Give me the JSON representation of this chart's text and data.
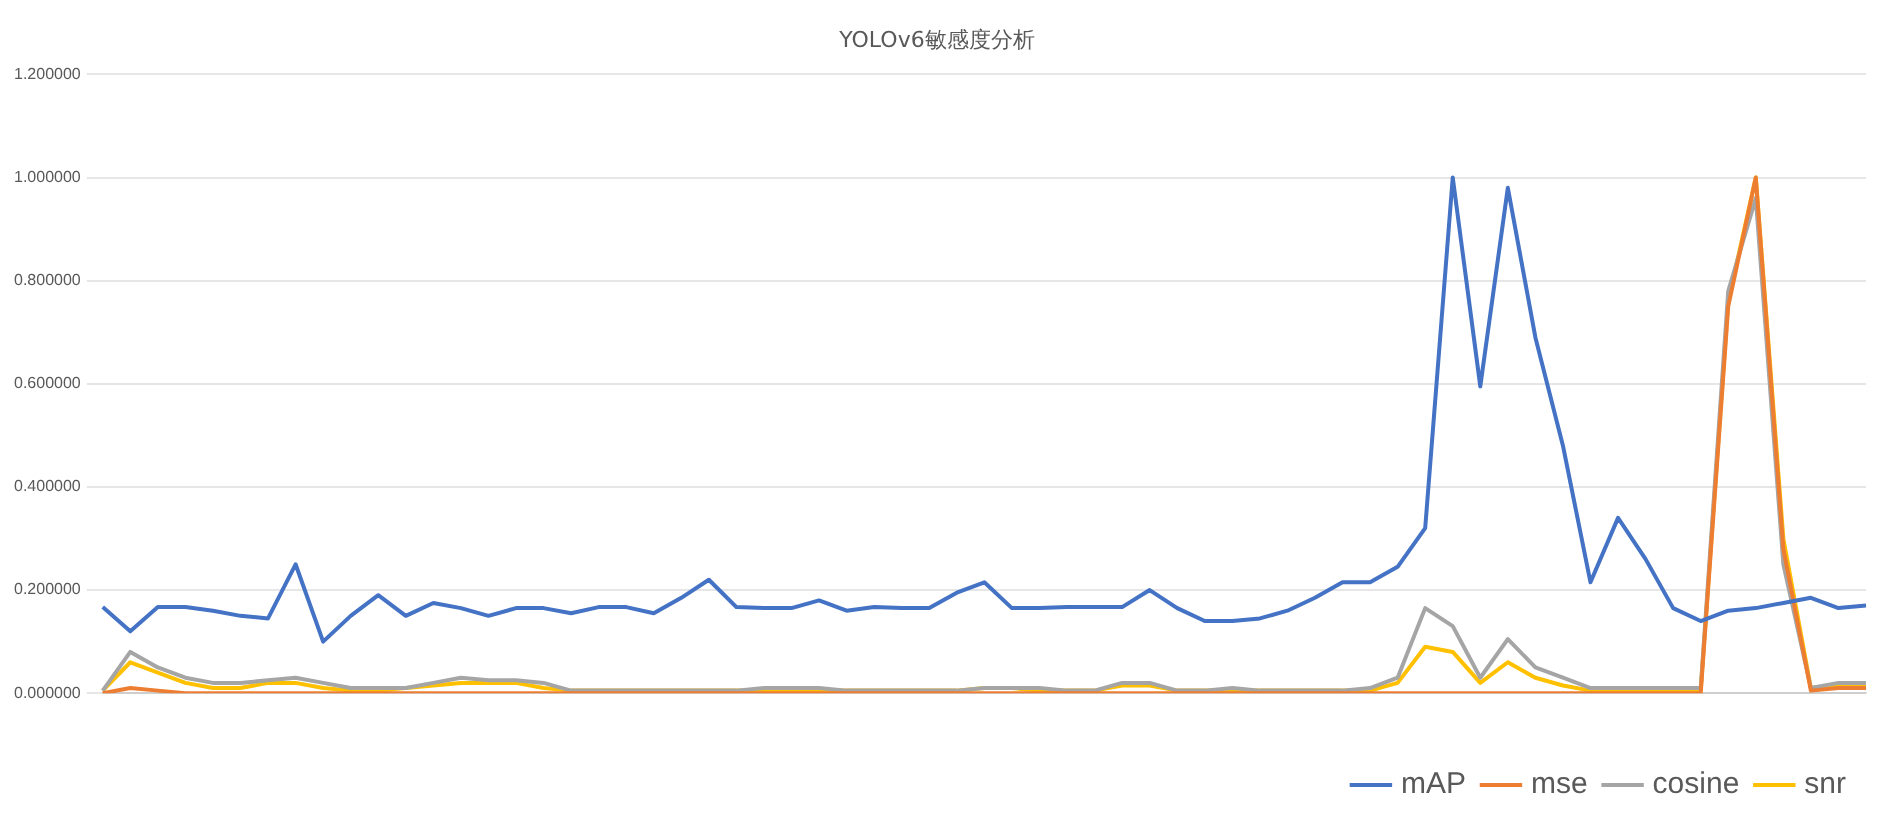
{
  "chart_data": {
    "type": "line",
    "title": "YOLOv6敏感度分析",
    "categories": [
      null,
      null,
      null,
      null,
      null,
      null,
      null,
      null,
      null,
      null,
      null,
      null,
      null,
      null,
      null,
      null,
      null,
      null,
      null,
      null,
      null,
      null,
      null,
      null,
      null,
      null,
      null,
      null,
      null,
      null,
      null,
      null,
      null,
      null,
      null,
      null,
      null,
      null,
      null,
      null,
      null,
      null,
      null,
      null,
      null,
      null,
      null,
      null,
      null,
      null,
      null,
      null,
      null,
      null,
      null,
      null,
      null,
      null,
      null,
      null,
      null,
      null,
      null,
      null,
      null
    ],
    "series": [
      {
        "name": "mAP",
        "color": "#4472c4",
        "values": [
          0.167,
          0.12,
          0.167,
          0.167,
          0.16,
          0.15,
          0.145,
          0.25,
          0.1,
          0.15,
          0.19,
          0.15,
          0.175,
          0.165,
          0.15,
          0.165,
          0.165,
          0.155,
          0.167,
          0.167,
          0.155,
          0.185,
          0.22,
          0.167,
          0.165,
          0.165,
          0.18,
          0.16,
          0.167,
          0.165,
          0.165,
          0.195,
          0.215,
          0.165,
          0.165,
          0.167,
          0.167,
          0.167,
          0.2,
          0.165,
          0.14,
          0.14,
          0.145,
          0.16,
          0.185,
          0.215,
          0.215,
          0.245,
          0.32,
          1.0,
          0.595,
          0.98,
          0.69,
          0.48,
          0.215,
          0.34,
          0.26,
          0.165,
          0.14,
          0.16,
          0.165,
          0.175,
          0.185,
          0.165,
          0.17
        ]
      },
      {
        "name": "mse",
        "color": "#ed7d31",
        "values": [
          0,
          0.01,
          0.005,
          0,
          0,
          0,
          0,
          0,
          0,
          0,
          0,
          0,
          0,
          0,
          0,
          0,
          0,
          0,
          0,
          0,
          0,
          0,
          0,
          0,
          0,
          0,
          0,
          0,
          0,
          0,
          0,
          0,
          0,
          0,
          0,
          0,
          0,
          0,
          0,
          0,
          0,
          0,
          0,
          0,
          0,
          0,
          0,
          0,
          0,
          0,
          0,
          0,
          0,
          0,
          0,
          0,
          0,
          0,
          0,
          0.75,
          1.0,
          0.28,
          0.005,
          0.01,
          0.01
        ]
      },
      {
        "name": "cosine",
        "color": "#a5a5a5",
        "values": [
          0.005,
          0.08,
          0.05,
          0.03,
          0.02,
          0.02,
          0.025,
          0.03,
          0.02,
          0.01,
          0.01,
          0.01,
          0.02,
          0.03,
          0.025,
          0.025,
          0.02,
          0.005,
          0.005,
          0.005,
          0.005,
          0.005,
          0.005,
          0.005,
          0.01,
          0.01,
          0.01,
          0.005,
          0.005,
          0.005,
          0.005,
          0.005,
          0.01,
          0.01,
          0.01,
          0.005,
          0.005,
          0.02,
          0.02,
          0.005,
          0.005,
          0.01,
          0.005,
          0.005,
          0.005,
          0.005,
          0.01,
          0.03,
          0.165,
          0.13,
          0.03,
          0.105,
          0.05,
          0.03,
          0.01,
          0.01,
          0.01,
          0.01,
          0.01,
          0.78,
          0.96,
          0.25,
          0.01,
          0.02,
          0.02
        ]
      },
      {
        "name": "snr",
        "color": "#ffc000",
        "values": [
          0.005,
          0.06,
          0.04,
          0.02,
          0.01,
          0.01,
          0.02,
          0.02,
          0.01,
          0.005,
          0.005,
          0.01,
          0.015,
          0.02,
          0.02,
          0.02,
          0.01,
          0.005,
          0.005,
          0.005,
          0.005,
          0.005,
          0.005,
          0.005,
          0.005,
          0.005,
          0.005,
          0.005,
          0.005,
          0.005,
          0.005,
          0.005,
          0.01,
          0.01,
          0.005,
          0.005,
          0.005,
          0.015,
          0.015,
          0.005,
          0.005,
          0.005,
          0.005,
          0.005,
          0.005,
          0.005,
          0.005,
          0.02,
          0.09,
          0.08,
          0.02,
          0.06,
          0.03,
          0.015,
          0.005,
          0.005,
          0.005,
          0.005,
          0.005,
          0.76,
          1.0,
          0.3,
          0.01,
          0.015,
          0.015
        ]
      }
    ],
    "ylim": [
      0,
      1.2
    ],
    "yticks": [
      {
        "value": 0,
        "label": "0.000000"
      },
      {
        "value": 0.2,
        "label": "0.200000"
      },
      {
        "value": 0.4,
        "label": "0.400000"
      },
      {
        "value": 0.6,
        "label": "0.600000"
      },
      {
        "value": 0.8,
        "label": "0.800000"
      },
      {
        "value": 1.0,
        "label": "1.000000"
      },
      {
        "value": 1.2,
        "label": "1.200000"
      }
    ],
    "grid": "y",
    "legend": "bottom right",
    "marker": "none",
    "line_style": "solid"
  }
}
